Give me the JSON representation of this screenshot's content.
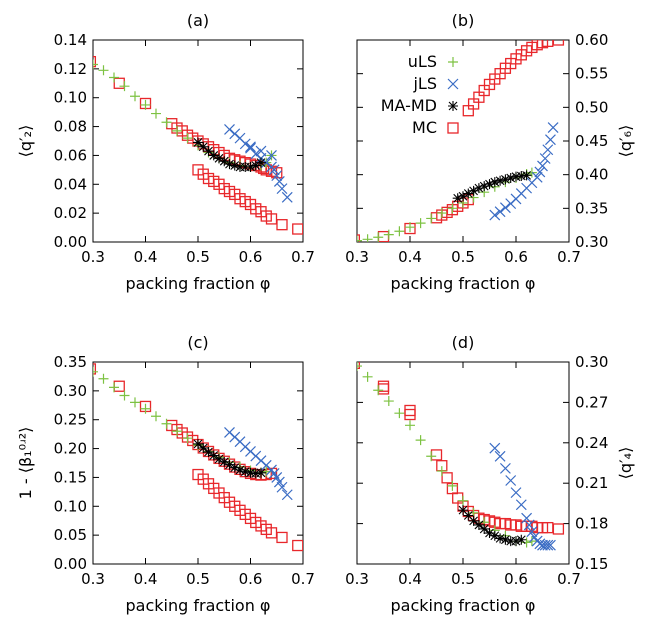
{
  "colors": {
    "uLS": "#7dc242",
    "jLS": "#3a6cc4",
    "MA-MD": "#000000",
    "MC": "#e8272b"
  },
  "legend": [
    {
      "label": "uLS",
      "marker": "plus"
    },
    {
      "label": "jLS",
      "marker": "cross"
    },
    {
      "label": "MA-MD",
      "marker": "star"
    },
    {
      "label": "MC",
      "marker": "box"
    }
  ],
  "chart_data": [
    {
      "type": "scatter",
      "title": "(a)",
      "xlabel": "packing fraction φ",
      "ylabel": "⟨q′₂⟩",
      "xlim": [
        0.3,
        0.7
      ],
      "ylim": [
        0.0,
        0.14
      ],
      "xticks": [
        "0.3",
        "0.4",
        "0.5",
        "0.6",
        "0.7"
      ],
      "yticks": [
        "0.00",
        "0.02",
        "0.04",
        "0.06",
        "0.08",
        "0.10",
        "0.12",
        "0.14"
      ],
      "yaxis_side": "left",
      "legend_position": "none",
      "series": [
        {
          "name": "MC",
          "x": [
            0.295,
            0.35,
            0.4,
            0.45,
            0.46,
            0.47,
            0.48,
            0.49,
            0.5,
            0.51,
            0.52,
            0.53,
            0.54,
            0.55,
            0.56,
            0.57,
            0.58,
            0.59,
            0.6,
            0.61,
            0.62,
            0.625,
            0.63,
            0.64,
            0.65,
            0.5,
            0.51,
            0.52,
            0.53,
            0.54,
            0.55,
            0.56,
            0.57,
            0.58,
            0.59,
            0.6,
            0.61,
            0.62,
            0.63,
            0.64,
            0.66,
            0.69
          ],
          "y": [
            0.125,
            0.11,
            0.096,
            0.082,
            0.079,
            0.077,
            0.074,
            0.072,
            0.07,
            0.068,
            0.066,
            0.064,
            0.062,
            0.06,
            0.058,
            0.057,
            0.056,
            0.055,
            0.054,
            0.053,
            0.052,
            0.051,
            0.05,
            0.049,
            0.048,
            0.05,
            0.047,
            0.044,
            0.042,
            0.04,
            0.037,
            0.035,
            0.033,
            0.03,
            0.028,
            0.026,
            0.023,
            0.021,
            0.018,
            0.016,
            0.012,
            0.009
          ]
        },
        {
          "name": "uLS",
          "x": [
            0.3,
            0.32,
            0.34,
            0.36,
            0.38,
            0.4,
            0.42,
            0.44,
            0.46,
            0.48,
            0.5,
            0.52,
            0.54,
            0.56,
            0.58,
            0.6,
            0.62,
            0.63,
            0.64
          ],
          "y": [
            0.123,
            0.119,
            0.114,
            0.108,
            0.101,
            0.095,
            0.089,
            0.083,
            0.077,
            0.072,
            0.067,
            0.062,
            0.058,
            0.055,
            0.053,
            0.052,
            0.053,
            0.055,
            0.06
          ]
        },
        {
          "name": "jLS",
          "x": [
            0.56,
            0.57,
            0.58,
            0.59,
            0.6,
            0.61,
            0.62,
            0.63,
            0.64,
            0.645,
            0.65,
            0.655,
            0.66,
            0.67,
            0.64,
            0.62,
            0.6
          ],
          "y": [
            0.078,
            0.075,
            0.072,
            0.068,
            0.065,
            0.061,
            0.058,
            0.055,
            0.052,
            0.05,
            0.046,
            0.042,
            0.037,
            0.031,
            0.06,
            0.063,
            0.066
          ]
        },
        {
          "name": "MA-MD",
          "x": [
            0.5,
            0.51,
            0.52,
            0.53,
            0.54,
            0.55,
            0.56,
            0.57,
            0.58,
            0.59,
            0.6,
            0.61,
            0.62
          ],
          "y": [
            0.069,
            0.066,
            0.063,
            0.06,
            0.058,
            0.056,
            0.054,
            0.053,
            0.052,
            0.052,
            0.052,
            0.053,
            0.055
          ]
        }
      ]
    },
    {
      "type": "scatter",
      "title": "(b)",
      "xlabel": "packing fraction φ",
      "ylabel": "⟨q′₆⟩",
      "xlim": [
        0.3,
        0.7
      ],
      "ylim": [
        0.3,
        0.6
      ],
      "xticks": [
        "0.3",
        "0.4",
        "0.5",
        "0.6",
        "0.7"
      ],
      "yticks": [
        "0.30",
        "0.35",
        "0.40",
        "0.45",
        "0.50",
        "0.55",
        "0.60"
      ],
      "yaxis_side": "right",
      "legend_position": "top-left",
      "series": [
        {
          "name": "MC",
          "x": [
            0.295,
            0.35,
            0.4,
            0.45,
            0.46,
            0.47,
            0.48,
            0.49,
            0.5,
            0.51,
            0.51,
            0.52,
            0.53,
            0.54,
            0.55,
            0.56,
            0.57,
            0.58,
            0.59,
            0.6,
            0.61,
            0.62,
            0.63,
            0.64,
            0.65,
            0.66,
            0.68
          ],
          "y": [
            0.303,
            0.308,
            0.32,
            0.336,
            0.34,
            0.344,
            0.348,
            0.353,
            0.358,
            0.363,
            0.495,
            0.505,
            0.515,
            0.525,
            0.534,
            0.542,
            0.55,
            0.558,
            0.565,
            0.572,
            0.578,
            0.584,
            0.589,
            0.593,
            0.596,
            0.598,
            0.6
          ]
        },
        {
          "name": "uLS",
          "x": [
            0.3,
            0.32,
            0.34,
            0.36,
            0.38,
            0.4,
            0.42,
            0.44,
            0.46,
            0.48,
            0.5,
            0.52,
            0.54,
            0.56,
            0.58,
            0.6,
            0.62,
            0.63
          ],
          "y": [
            0.302,
            0.304,
            0.307,
            0.311,
            0.316,
            0.322,
            0.328,
            0.335,
            0.343,
            0.35,
            0.358,
            0.366,
            0.374,
            0.382,
            0.389,
            0.395,
            0.401,
            0.403
          ]
        },
        {
          "name": "jLS",
          "x": [
            0.56,
            0.57,
            0.58,
            0.59,
            0.6,
            0.61,
            0.62,
            0.63,
            0.64,
            0.645,
            0.65,
            0.655,
            0.66,
            0.665,
            0.67
          ],
          "y": [
            0.34,
            0.345,
            0.351,
            0.357,
            0.364,
            0.372,
            0.38,
            0.388,
            0.396,
            0.404,
            0.413,
            0.424,
            0.437,
            0.452,
            0.47
          ]
        },
        {
          "name": "MA-MD",
          "x": [
            0.49,
            0.5,
            0.51,
            0.52,
            0.53,
            0.54,
            0.55,
            0.56,
            0.57,
            0.58,
            0.59,
            0.6,
            0.61,
            0.62
          ],
          "y": [
            0.365,
            0.368,
            0.372,
            0.376,
            0.38,
            0.383,
            0.386,
            0.389,
            0.391,
            0.393,
            0.395,
            0.397,
            0.398,
            0.399
          ]
        }
      ]
    },
    {
      "type": "scatter",
      "title": "(c)",
      "xlabel": "packing fraction φ",
      "ylabel": "1 - ⟨β₁⁰ʴ²⟩",
      "xlim": [
        0.3,
        0.7
      ],
      "ylim": [
        0.0,
        0.35
      ],
      "xticks": [
        "0.3",
        "0.4",
        "0.5",
        "0.6",
        "0.7"
      ],
      "yticks": [
        "0.00",
        "0.05",
        "0.10",
        "0.15",
        "0.20",
        "0.25",
        "0.30",
        "0.35"
      ],
      "yaxis_side": "left",
      "legend_position": "none",
      "series": [
        {
          "name": "MC",
          "x": [
            0.295,
            0.35,
            0.4,
            0.45,
            0.46,
            0.47,
            0.48,
            0.49,
            0.5,
            0.51,
            0.52,
            0.53,
            0.54,
            0.55,
            0.56,
            0.57,
            0.58,
            0.59,
            0.6,
            0.61,
            0.62,
            0.63,
            0.64,
            0.5,
            0.51,
            0.52,
            0.53,
            0.54,
            0.55,
            0.56,
            0.57,
            0.58,
            0.59,
            0.6,
            0.61,
            0.62,
            0.63,
            0.64,
            0.66,
            0.69
          ],
          "y": [
            0.338,
            0.308,
            0.273,
            0.24,
            0.233,
            0.227,
            0.22,
            0.214,
            0.207,
            0.201,
            0.195,
            0.189,
            0.183,
            0.178,
            0.173,
            0.168,
            0.164,
            0.16,
            0.157,
            0.155,
            0.154,
            0.155,
            0.157,
            0.155,
            0.147,
            0.139,
            0.131,
            0.123,
            0.115,
            0.107,
            0.1,
            0.093,
            0.086,
            0.079,
            0.072,
            0.066,
            0.06,
            0.054,
            0.046,
            0.032
          ]
        },
        {
          "name": "uLS",
          "x": [
            0.3,
            0.32,
            0.34,
            0.36,
            0.38,
            0.4,
            0.42,
            0.44,
            0.46,
            0.48,
            0.5,
            0.52,
            0.54,
            0.56,
            0.58,
            0.6,
            0.62,
            0.63
          ],
          "y": [
            0.333,
            0.321,
            0.306,
            0.292,
            0.28,
            0.269,
            0.256,
            0.243,
            0.23,
            0.218,
            0.206,
            0.195,
            0.185,
            0.176,
            0.168,
            0.162,
            0.158,
            0.16
          ]
        },
        {
          "name": "jLS",
          "x": [
            0.56,
            0.57,
            0.58,
            0.59,
            0.6,
            0.61,
            0.62,
            0.63,
            0.64,
            0.645,
            0.65,
            0.655,
            0.66,
            0.67
          ],
          "y": [
            0.228,
            0.22,
            0.212,
            0.203,
            0.195,
            0.187,
            0.179,
            0.171,
            0.163,
            0.157,
            0.15,
            0.142,
            0.133,
            0.12
          ]
        },
        {
          "name": "MA-MD",
          "x": [
            0.5,
            0.51,
            0.52,
            0.53,
            0.54,
            0.55,
            0.56,
            0.57,
            0.58,
            0.59,
            0.6,
            0.61,
            0.62
          ],
          "y": [
            0.208,
            0.201,
            0.194,
            0.188,
            0.182,
            0.177,
            0.172,
            0.167,
            0.163,
            0.16,
            0.158,
            0.157,
            0.158
          ]
        }
      ]
    },
    {
      "type": "scatter",
      "title": "(d)",
      "xlabel": "packing fraction φ",
      "ylabel": "⟨q′₄⟩",
      "xlim": [
        0.3,
        0.7
      ],
      "ylim": [
        0.15,
        0.3
      ],
      "xticks": [
        "0.3",
        "0.4",
        "0.5",
        "0.6",
        "0.7"
      ],
      "yticks": [
        "0.15",
        "0.18",
        "0.21",
        "0.24",
        "0.27",
        "0.30"
      ],
      "yaxis_side": "right",
      "legend_position": "none",
      "series": [
        {
          "name": "MC",
          "x": [
            0.295,
            0.35,
            0.35,
            0.4,
            0.4,
            0.45,
            0.46,
            0.47,
            0.48,
            0.49,
            0.5,
            0.51,
            0.52,
            0.53,
            0.54,
            0.55,
            0.56,
            0.57,
            0.58,
            0.59,
            0.6,
            0.61,
            0.62,
            0.63,
            0.64,
            0.65,
            0.66,
            0.68
          ],
          "y": [
            0.299,
            0.282,
            0.28,
            0.264,
            0.261,
            0.231,
            0.223,
            0.214,
            0.206,
            0.199,
            0.193,
            0.189,
            0.186,
            0.184,
            0.183,
            0.182,
            0.181,
            0.18,
            0.18,
            0.179,
            0.179,
            0.178,
            0.178,
            0.178,
            0.177,
            0.177,
            0.177,
            0.176
          ]
        },
        {
          "name": "uLS",
          "x": [
            0.3,
            0.32,
            0.34,
            0.36,
            0.38,
            0.4,
            0.42,
            0.44,
            0.46,
            0.48,
            0.5,
            0.52,
            0.54,
            0.56,
            0.58,
            0.6,
            0.62,
            0.63
          ],
          "y": [
            0.297,
            0.289,
            0.279,
            0.271,
            0.262,
            0.253,
            0.242,
            0.23,
            0.219,
            0.208,
            0.197,
            0.188,
            0.181,
            0.175,
            0.171,
            0.167,
            0.166,
            0.167
          ]
        },
        {
          "name": "jLS",
          "x": [
            0.56,
            0.57,
            0.58,
            0.59,
            0.6,
            0.61,
            0.62,
            0.625,
            0.63,
            0.635,
            0.64,
            0.645,
            0.65,
            0.655,
            0.66,
            0.665
          ],
          "y": [
            0.236,
            0.23,
            0.221,
            0.212,
            0.203,
            0.194,
            0.184,
            0.179,
            0.174,
            0.17,
            0.167,
            0.165,
            0.164,
            0.164,
            0.164,
            0.164
          ]
        },
        {
          "name": "MA-MD",
          "x": [
            0.5,
            0.51,
            0.52,
            0.53,
            0.54,
            0.55,
            0.56,
            0.57,
            0.58,
            0.59,
            0.6,
            0.61
          ],
          "y": [
            0.19,
            0.186,
            0.182,
            0.179,
            0.176,
            0.173,
            0.171,
            0.169,
            0.168,
            0.167,
            0.167,
            0.168
          ]
        }
      ]
    }
  ]
}
